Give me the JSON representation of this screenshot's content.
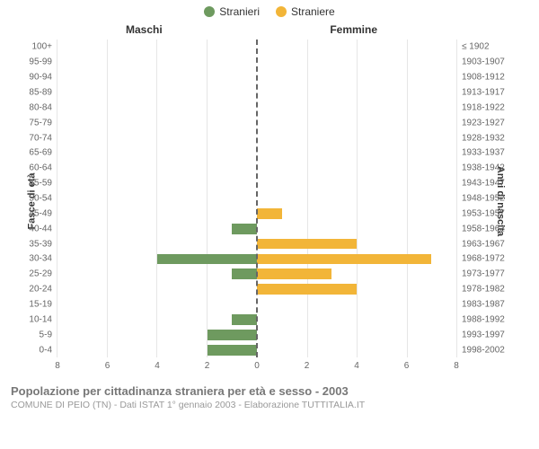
{
  "legend": {
    "male": {
      "label": "Stranieri",
      "color": "#6e9a5f"
    },
    "female": {
      "label": "Straniere",
      "color": "#f2b538"
    }
  },
  "chart": {
    "type": "bar",
    "orientation": "horizontal-pyramid",
    "male_title": "Maschi",
    "female_title": "Femmine",
    "y_left_title": "Fasce di età",
    "y_right_title": "Anni di nascita",
    "xlim": 8,
    "xticks": [
      8,
      6,
      4,
      2,
      0,
      2,
      4,
      6,
      8
    ],
    "grid_color": "#e6e6e6",
    "center_line_color": "#666666",
    "background_color": "#ffffff",
    "tick_fontsize": 10,
    "label_fontsize": 11,
    "title_fontsize": 12,
    "bar_height_ratio": 0.7,
    "rows": [
      {
        "age": "100+",
        "birth": "≤ 1902",
        "m": 0,
        "f": 0
      },
      {
        "age": "95-99",
        "birth": "1903-1907",
        "m": 0,
        "f": 0
      },
      {
        "age": "90-94",
        "birth": "1908-1912",
        "m": 0,
        "f": 0
      },
      {
        "age": "85-89",
        "birth": "1913-1917",
        "m": 0,
        "f": 0
      },
      {
        "age": "80-84",
        "birth": "1918-1922",
        "m": 0,
        "f": 0
      },
      {
        "age": "75-79",
        "birth": "1923-1927",
        "m": 0,
        "f": 0
      },
      {
        "age": "70-74",
        "birth": "1928-1932",
        "m": 0,
        "f": 0
      },
      {
        "age": "65-69",
        "birth": "1933-1937",
        "m": 0,
        "f": 0
      },
      {
        "age": "60-64",
        "birth": "1938-1942",
        "m": 0,
        "f": 0
      },
      {
        "age": "55-59",
        "birth": "1943-1947",
        "m": 0,
        "f": 0
      },
      {
        "age": "50-54",
        "birth": "1948-1952",
        "m": 0,
        "f": 0
      },
      {
        "age": "45-49",
        "birth": "1953-1957",
        "m": 0,
        "f": 1
      },
      {
        "age": "40-44",
        "birth": "1958-1962",
        "m": 1,
        "f": 0
      },
      {
        "age": "35-39",
        "birth": "1963-1967",
        "m": 0,
        "f": 4
      },
      {
        "age": "30-34",
        "birth": "1968-1972",
        "m": 4,
        "f": 7
      },
      {
        "age": "25-29",
        "birth": "1973-1977",
        "m": 1,
        "f": 3
      },
      {
        "age": "20-24",
        "birth": "1978-1982",
        "m": 0,
        "f": 4
      },
      {
        "age": "15-19",
        "birth": "1983-1987",
        "m": 0,
        "f": 0
      },
      {
        "age": "10-14",
        "birth": "1988-1992",
        "m": 1,
        "f": 0
      },
      {
        "age": "5-9",
        "birth": "1993-1997",
        "m": 2,
        "f": 0
      },
      {
        "age": "0-4",
        "birth": "1998-2002",
        "m": 2,
        "f": 0
      }
    ]
  },
  "footer": {
    "title": "Popolazione per cittadinanza straniera per età e sesso - 2003",
    "subtitle": "COMUNE DI PEIO (TN) - Dati ISTAT 1° gennaio 2003 - Elaborazione TUTTITALIA.IT"
  }
}
